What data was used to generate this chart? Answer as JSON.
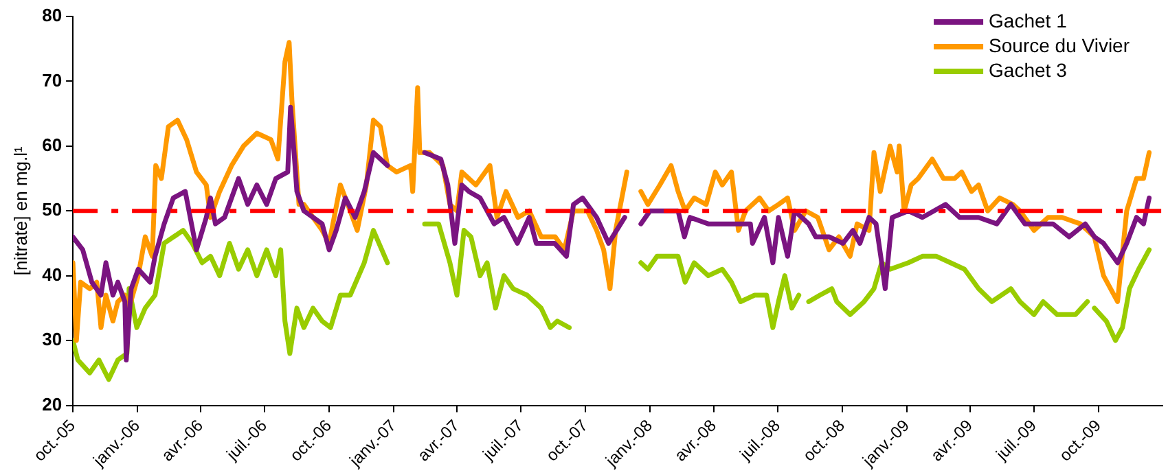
{
  "chart_data": {
    "type": "line",
    "ylabel": "[nitrate] en mg.l¹",
    "xlim": [
      "2005-10-01",
      "2009-12-31"
    ],
    "ylim": [
      20,
      80
    ],
    "yticks": [
      20,
      30,
      40,
      50,
      60,
      70,
      80
    ],
    "xticks": [
      {
        "value": "2005-10-01",
        "label": "oct.-05"
      },
      {
        "value": "2006-01-01",
        "label": "janv.-06"
      },
      {
        "value": "2006-04-01",
        "label": "avr.-06"
      },
      {
        "value": "2006-07-01",
        "label": "juil.-06"
      },
      {
        "value": "2006-10-01",
        "label": "oct.-06"
      },
      {
        "value": "2007-01-01",
        "label": "janv.-07"
      },
      {
        "value": "2007-04-01",
        "label": "avr.-07"
      },
      {
        "value": "2007-07-01",
        "label": "juil.-07"
      },
      {
        "value": "2007-10-01",
        "label": "oct.-07"
      },
      {
        "value": "2008-01-01",
        "label": "janv.-08"
      },
      {
        "value": "2008-04-01",
        "label": "avr.-08"
      },
      {
        "value": "2008-07-01",
        "label": "juil.-08"
      },
      {
        "value": "2008-10-01",
        "label": "oct.-08"
      },
      {
        "value": "2009-01-01",
        "label": "janv.-09"
      },
      {
        "value": "2009-04-01",
        "label": "avr.-09"
      },
      {
        "value": "2009-07-01",
        "label": "juil.-09"
      },
      {
        "value": "2009-10-01",
        "label": "oct.-09"
      }
    ],
    "grid": false,
    "legend": "top right",
    "marker": "none",
    "line_style": "solid",
    "ref_lines": [
      {
        "axis": "y",
        "value": 50,
        "color": "#ff0000",
        "line_style": "dashed"
      }
    ],
    "series": [
      {
        "name": "Gachet 1",
        "color": "#7a1480",
        "x": [
          "2005-10-01",
          "2005-10-15",
          "2005-10-28",
          "2005-11-10",
          "2005-11-17",
          "2005-11-27",
          "2005-12-04",
          "2005-12-14",
          "2005-12-16",
          "2005-12-23",
          "2006-01-02",
          "2006-01-19",
          "2006-01-26",
          "2006-02-08",
          "2006-02-21",
          "2006-03-10",
          "2006-03-26",
          "2006-04-09",
          "2006-04-15",
          "2006-04-22",
          "2006-05-05",
          "2006-05-25",
          "2006-06-07",
          "2006-06-20",
          "2006-07-04",
          "2006-07-17",
          "2006-08-03",
          "2006-08-07",
          "2006-08-12",
          "2006-08-16",
          "2006-08-26",
          "2006-09-08",
          "2006-09-21",
          "2006-10-01",
          "2006-10-11",
          "2006-10-24",
          "2006-11-07",
          "2006-11-20",
          "2006-12-03",
          "2006-12-23",
          "2007-01-20",
          "2007-02-14",
          "2007-03-09",
          "2007-03-19",
          "2007-03-29",
          "2007-04-08",
          "2007-04-18",
          "2007-05-04",
          "2007-05-24",
          "2007-06-07",
          "2007-06-26",
          "2007-07-13",
          "2007-07-23",
          "2007-08-18",
          "2007-09-04",
          "2007-09-14",
          "2007-09-27",
          "2007-10-17",
          "2007-11-03",
          "2007-11-26",
          "2007-12-08",
          "2007-12-19",
          "2008-01-01",
          "2008-02-10",
          "2008-02-19",
          "2008-02-27",
          "2008-03-24",
          "2008-04-13",
          "2008-05-23",
          "2008-05-26",
          "2008-06-12",
          "2008-06-24",
          "2008-07-02",
          "2008-07-15",
          "2008-07-25",
          "2008-08-14",
          "2008-08-24",
          "2008-09-12",
          "2008-10-02",
          "2008-10-16",
          "2008-10-26",
          "2008-11-08",
          "2008-11-18",
          "2008-11-26",
          "2008-12-01",
          "2008-12-11",
          "2009-01-03",
          "2009-01-23",
          "2009-02-25",
          "2009-03-17",
          "2009-04-13",
          "2009-05-09",
          "2009-05-29",
          "2009-06-18",
          "2009-07-08",
          "2009-07-28",
          "2009-08-20",
          "2009-09-12",
          "2009-09-25",
          "2009-10-08",
          "2009-10-28",
          "2009-11-10",
          "2009-11-24",
          "2009-12-04",
          "2009-12-12"
        ],
        "values": [
          46,
          44,
          39,
          37,
          42,
          37,
          39,
          36,
          27,
          38,
          41,
          39,
          43,
          48,
          52,
          53,
          44,
          49,
          52,
          48,
          49,
          55,
          51,
          54,
          51,
          55,
          56,
          66,
          59,
          53,
          50,
          49,
          48,
          44,
          47,
          52,
          49,
          53,
          59,
          57,
          null,
          59,
          58,
          54,
          45,
          54,
          53,
          52,
          48,
          49,
          45,
          49,
          45,
          45,
          43,
          51,
          52,
          49,
          45,
          49,
          null,
          48,
          50,
          50,
          46,
          49,
          48,
          48,
          48,
          45,
          49,
          42,
          49,
          43,
          50,
          48,
          46,
          46,
          45,
          47,
          45,
          49,
          48,
          42,
          38,
          49,
          50,
          49,
          51,
          49,
          49,
          48,
          51,
          48,
          48,
          48,
          46,
          48,
          46,
          45,
          42,
          45,
          49,
          48,
          52
        ]
      },
      {
        "name": "Source du Vivier",
        "color": "#ff9900",
        "x": [
          "2005-10-01",
          "2005-10-06",
          "2005-10-12",
          "2005-10-25",
          "2005-11-04",
          "2005-11-10",
          "2005-11-17",
          "2005-11-27",
          "2005-12-04",
          "2005-12-14",
          "2005-12-20",
          "2006-01-02",
          "2006-01-12",
          "2006-01-22",
          "2006-01-27",
          "2006-02-04",
          "2006-02-14",
          "2006-02-27",
          "2006-03-12",
          "2006-03-26",
          "2006-04-09",
          "2006-04-15",
          "2006-04-28",
          "2006-05-15",
          "2006-06-01",
          "2006-06-20",
          "2006-07-10",
          "2006-07-20",
          "2006-07-30",
          "2006-08-05",
          "2006-08-09",
          "2006-08-19",
          "2006-08-26",
          "2006-09-08",
          "2006-09-21",
          "2006-10-01",
          "2006-10-17",
          "2006-10-31",
          "2006-11-10",
          "2006-11-23",
          "2006-12-03",
          "2006-12-13",
          "2006-12-23",
          "2007-01-05",
          "2007-01-25",
          "2007-01-28",
          "2007-02-04",
          "2007-02-07",
          "2007-02-21",
          "2007-03-12",
          "2007-03-22",
          "2007-04-01",
          "2007-04-08",
          "2007-04-28",
          "2007-05-18",
          "2007-05-28",
          "2007-06-10",
          "2007-06-27",
          "2007-07-13",
          "2007-07-30",
          "2007-08-19",
          "2007-09-01",
          "2007-09-14",
          "2007-10-04",
          "2007-10-17",
          "2007-10-27",
          "2007-11-05",
          "2007-11-13",
          "2007-11-29",
          "2007-12-09",
          "2007-12-19",
          "2007-12-29",
          "2008-01-15",
          "2008-01-31",
          "2008-02-10",
          "2008-02-20",
          "2008-03-04",
          "2008-03-21",
          "2008-04-03",
          "2008-04-13",
          "2008-04-26",
          "2008-05-06",
          "2008-05-16",
          "2008-06-05",
          "2008-06-18",
          "2008-07-02",
          "2008-07-15",
          "2008-07-25",
          "2008-08-10",
          "2008-08-27",
          "2008-09-12",
          "2008-09-26",
          "2008-10-12",
          "2008-10-22",
          "2008-11-08",
          "2008-11-15",
          "2008-11-24",
          "2008-12-08",
          "2008-12-18",
          "2008-12-21",
          "2008-12-28",
          "2009-01-07",
          "2009-01-17",
          "2009-02-06",
          "2009-02-22",
          "2009-03-10",
          "2009-03-20",
          "2009-04-03",
          "2009-04-13",
          "2009-04-26",
          "2009-05-13",
          "2009-06-01",
          "2009-06-11",
          "2009-07-01",
          "2009-07-21",
          "2009-08-10",
          "2009-09-05",
          "2009-09-25",
          "2009-10-08",
          "2009-10-28",
          "2009-11-10",
          "2009-11-24",
          "2009-12-04",
          "2009-12-12"
        ],
        "values": [
          42,
          30,
          39,
          38,
          39,
          32,
          37,
          33,
          36,
          37,
          35,
          40,
          46,
          43,
          57,
          55,
          63,
          64,
          61,
          56,
          54,
          49,
          53,
          57,
          60,
          62,
          61,
          58,
          73,
          76,
          67,
          51,
          51,
          49,
          47,
          45,
          54,
          50,
          47,
          54,
          64,
          63,
          57,
          56,
          57,
          53,
          69,
          59,
          59,
          57,
          51,
          50,
          56,
          54,
          57,
          49,
          53,
          49,
          50,
          46,
          46,
          44,
          50,
          50,
          47,
          44,
          38,
          47,
          56,
          null,
          53,
          51,
          54,
          57,
          53,
          50,
          52,
          51,
          56,
          54,
          56,
          47,
          50,
          52,
          50,
          51,
          52,
          47,
          50,
          49,
          44,
          46,
          43,
          48,
          47,
          59,
          53,
          60,
          56,
          60,
          50,
          54,
          55,
          58,
          55,
          55,
          56,
          53,
          54,
          50,
          52,
          51,
          50,
          47,
          49,
          49,
          48,
          46,
          40,
          36,
          50,
          55,
          55,
          59
        ]
      },
      {
        "name": "Gachet 3",
        "color": "#99cc00",
        "x": [
          "2005-10-01",
          "2005-10-08",
          "2005-10-25",
          "2005-11-07",
          "2005-11-21",
          "2005-12-04",
          "2005-12-17",
          "2005-12-20",
          "2005-12-31",
          "2006-01-12",
          "2006-01-26",
          "2006-02-08",
          "2006-03-07",
          "2006-03-20",
          "2006-04-03",
          "2006-04-15",
          "2006-04-28",
          "2006-05-12",
          "2006-05-25",
          "2006-06-07",
          "2006-06-20",
          "2006-07-04",
          "2006-07-17",
          "2006-07-24",
          "2006-07-30",
          "2006-08-06",
          "2006-08-16",
          "2006-08-26",
          "2006-09-08",
          "2006-09-21",
          "2006-10-03",
          "2006-10-17",
          "2006-10-31",
          "2006-11-20",
          "2006-12-03",
          "2006-12-23",
          "2007-01-20",
          "2007-02-14",
          "2007-03-06",
          "2007-03-22",
          "2007-04-01",
          "2007-04-11",
          "2007-04-21",
          "2007-05-04",
          "2007-05-14",
          "2007-05-26",
          "2007-06-07",
          "2007-06-20",
          "2007-07-10",
          "2007-07-30",
          "2007-08-12",
          "2007-08-22",
          "2007-09-08",
          "2007-11-01",
          "2007-12-19",
          "2007-12-29",
          "2008-01-11",
          "2008-01-25",
          "2008-02-10",
          "2008-02-20",
          "2008-03-04",
          "2008-03-24",
          "2008-04-13",
          "2008-04-26",
          "2008-05-09",
          "2008-05-29",
          "2008-06-15",
          "2008-06-24",
          "2008-07-02",
          "2008-07-11",
          "2008-07-21",
          "2008-07-31",
          "2008-08-07",
          "2008-08-14",
          "2008-08-30",
          "2008-09-16",
          "2008-09-23",
          "2008-10-12",
          "2008-11-01",
          "2008-11-15",
          "2008-11-26",
          "2008-12-08",
          "2009-01-03",
          "2009-01-23",
          "2009-02-12",
          "2009-03-04",
          "2009-03-24",
          "2009-04-13",
          "2009-05-02",
          "2009-05-29",
          "2009-06-11",
          "2009-07-01",
          "2009-07-14",
          "2009-08-03",
          "2009-08-29",
          "2009-09-15",
          "2009-09-20",
          "2009-09-25",
          "2009-10-12",
          "2009-10-25",
          "2009-11-04",
          "2009-11-14",
          "2009-11-27",
          "2009-12-12"
        ],
        "values": [
          30,
          27,
          25,
          27,
          24,
          27,
          28,
          38,
          32,
          35,
          37,
          45,
          47,
          45,
          42,
          43,
          40,
          45,
          41,
          44,
          40,
          44,
          40,
          44,
          33,
          28,
          35,
          32,
          35,
          33,
          32,
          37,
          37,
          42,
          47,
          42,
          null,
          48,
          48,
          42,
          37,
          47,
          46,
          40,
          42,
          35,
          40,
          38,
          37,
          35,
          32,
          33,
          32,
          null,
          42,
          41,
          43,
          43,
          43,
          39,
          42,
          40,
          41,
          39,
          36,
          37,
          37,
          32,
          36,
          40,
          35,
          37,
          null,
          36,
          37,
          38,
          36,
          34,
          36,
          38,
          42,
          41,
          42,
          43,
          43,
          42,
          41,
          38,
          36,
          38,
          36,
          34,
          36,
          34,
          34,
          36,
          null,
          35,
          33,
          30,
          32,
          38,
          41,
          44
        ]
      }
    ]
  }
}
